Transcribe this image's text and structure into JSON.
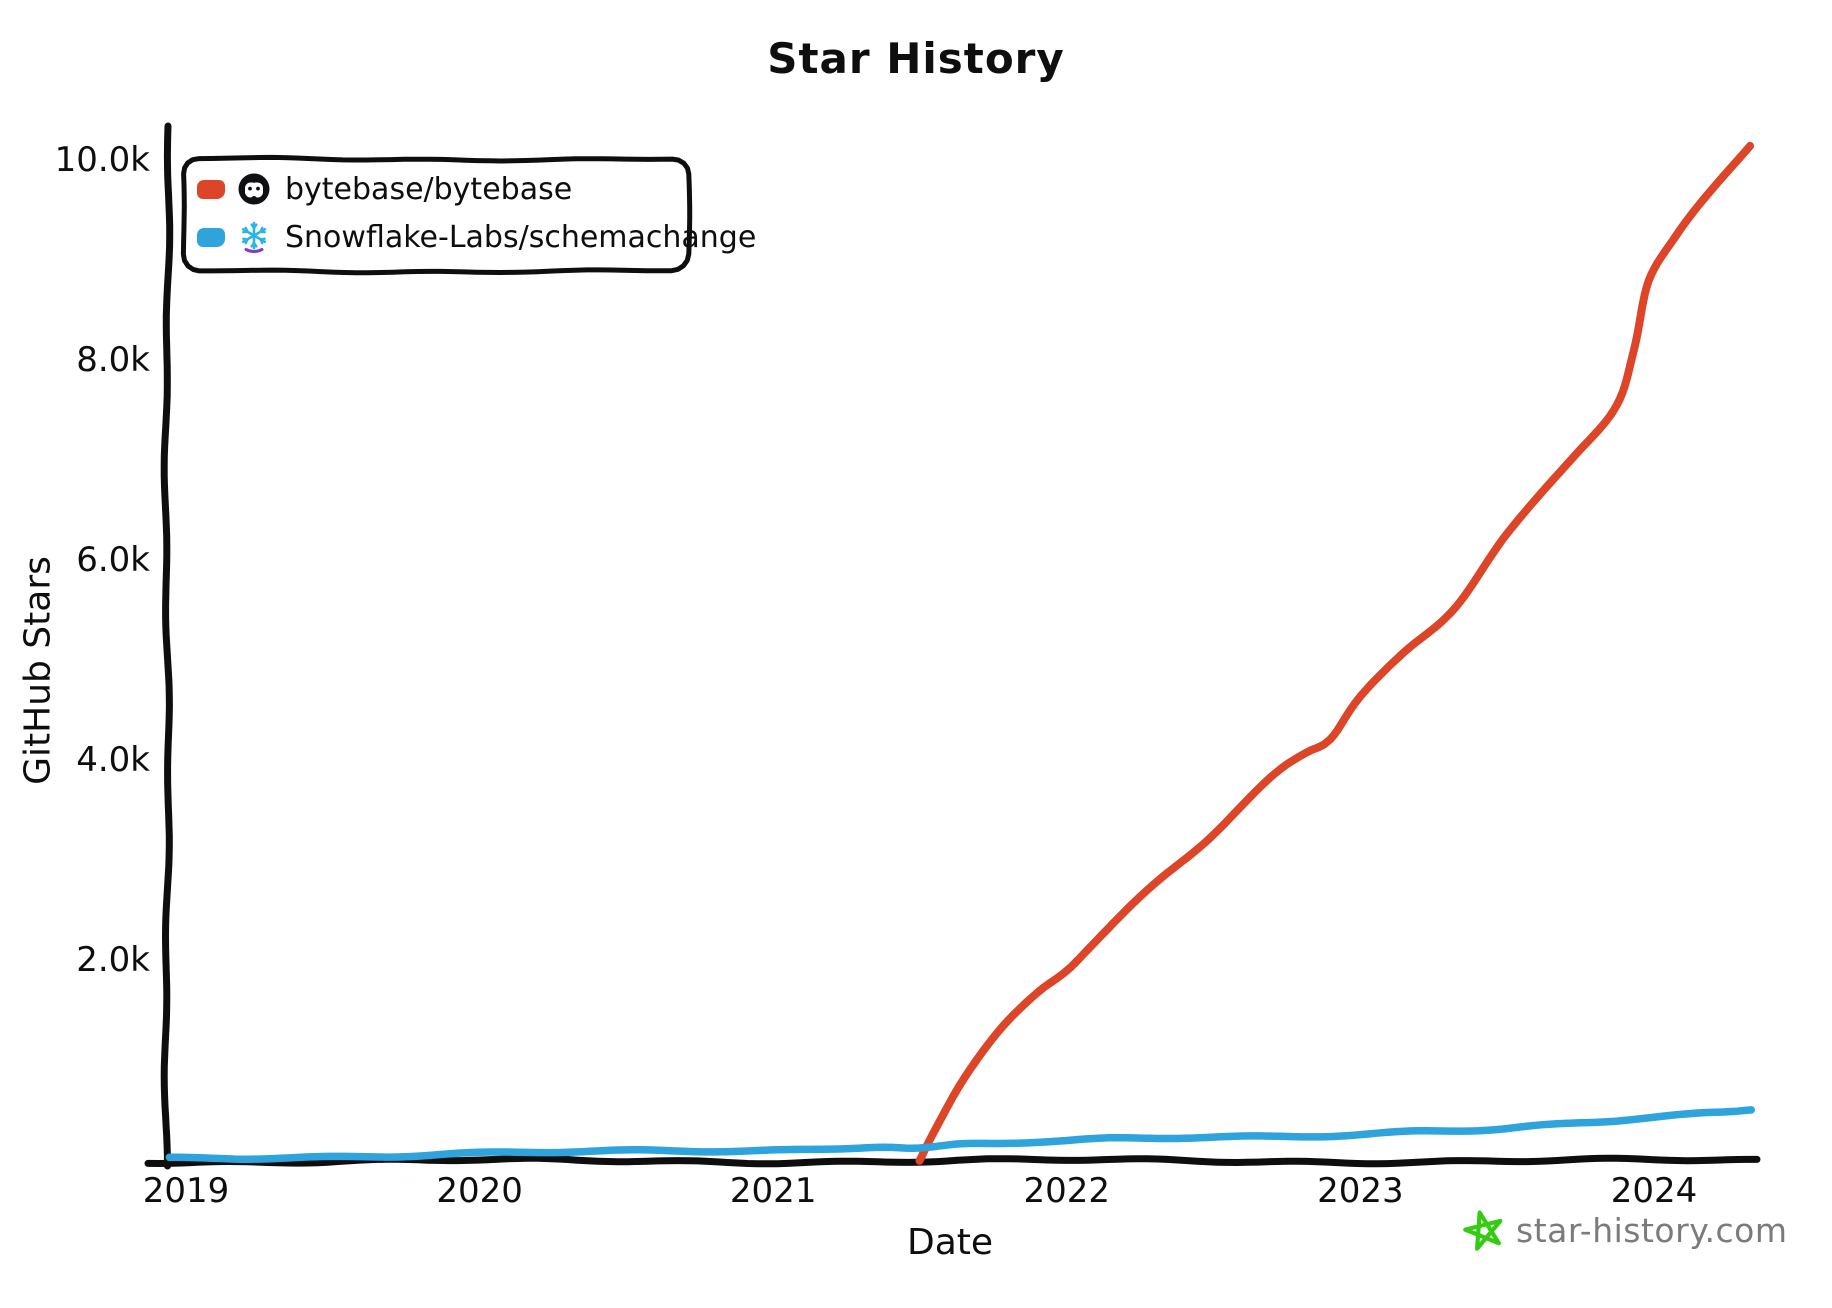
{
  "page": {
    "background": "#ffffff"
  },
  "chart_data": {
    "type": "line",
    "title": "Star History",
    "xlabel": "Date",
    "ylabel": "GitHub Stars",
    "grid": false,
    "legend_position": "top-left",
    "x_tick_labels": [
      "2019",
      "2020",
      "2021",
      "2022",
      "2023",
      "2024"
    ],
    "x_tick_values": [
      2019,
      2020,
      2021,
      2022,
      2023,
      2024
    ],
    "y_tick_labels": [
      "2.0k",
      "4.0k",
      "6.0k",
      "8.0k",
      "10.0k"
    ],
    "y_tick_values": [
      2000,
      4000,
      6000,
      8000,
      10000
    ],
    "xlim": [
      2018.93,
      2024.35
    ],
    "ylim": [
      0,
      10300
    ],
    "series": [
      {
        "name": "bytebase/bytebase",
        "color": "#dd4528",
        "icon": "bytebase-avatar-icon",
        "points": [
          [
            2021.5,
            10
          ],
          [
            2021.56,
            350
          ],
          [
            2021.65,
            820
          ],
          [
            2021.77,
            1280
          ],
          [
            2021.9,
            1650
          ],
          [
            2022.0,
            1880
          ],
          [
            2022.1,
            2180
          ],
          [
            2022.3,
            2760
          ],
          [
            2022.5,
            3270
          ],
          [
            2022.7,
            3860
          ],
          [
            2022.81,
            4090
          ],
          [
            2022.9,
            4230
          ],
          [
            2023.0,
            4630
          ],
          [
            2023.15,
            5080
          ],
          [
            2023.33,
            5520
          ],
          [
            2023.5,
            6260
          ],
          [
            2023.72,
            7010
          ],
          [
            2023.87,
            7560
          ],
          [
            2023.93,
            8100
          ],
          [
            2023.98,
            8800
          ],
          [
            2024.08,
            9260
          ],
          [
            2024.2,
            9700
          ],
          [
            2024.33,
            10140
          ]
        ]
      },
      {
        "name": "Snowflake-Labs/schemachange",
        "color": "#2fa3dc",
        "icon": "snowflake-icon",
        "points": [
          [
            2018.94,
            20
          ],
          [
            2019.3,
            35
          ],
          [
            2019.7,
            45
          ],
          [
            2020.0,
            60
          ],
          [
            2020.4,
            75
          ],
          [
            2020.8,
            90
          ],
          [
            2021.1,
            110
          ],
          [
            2021.35,
            150
          ],
          [
            2021.5,
            125
          ],
          [
            2021.65,
            165
          ],
          [
            2021.8,
            175
          ],
          [
            2022.0,
            180
          ],
          [
            2022.2,
            205
          ],
          [
            2022.5,
            215
          ],
          [
            2022.8,
            240
          ],
          [
            2023.0,
            265
          ],
          [
            2023.2,
            300
          ],
          [
            2023.45,
            320
          ],
          [
            2023.6,
            345
          ],
          [
            2023.8,
            375
          ],
          [
            2024.0,
            420
          ],
          [
            2024.15,
            445
          ],
          [
            2024.25,
            460
          ],
          [
            2024.33,
            490
          ]
        ]
      }
    ]
  },
  "watermark": {
    "text": "star-history.com",
    "color": "#7b7b7b",
    "star_color": "#33cc11"
  },
  "colors": {
    "axis": "#0e0e0e",
    "snowflake_blue": "#29b5e8",
    "snowflake_purple": "#7d3fc9",
    "avatar_dark": "#101014"
  }
}
